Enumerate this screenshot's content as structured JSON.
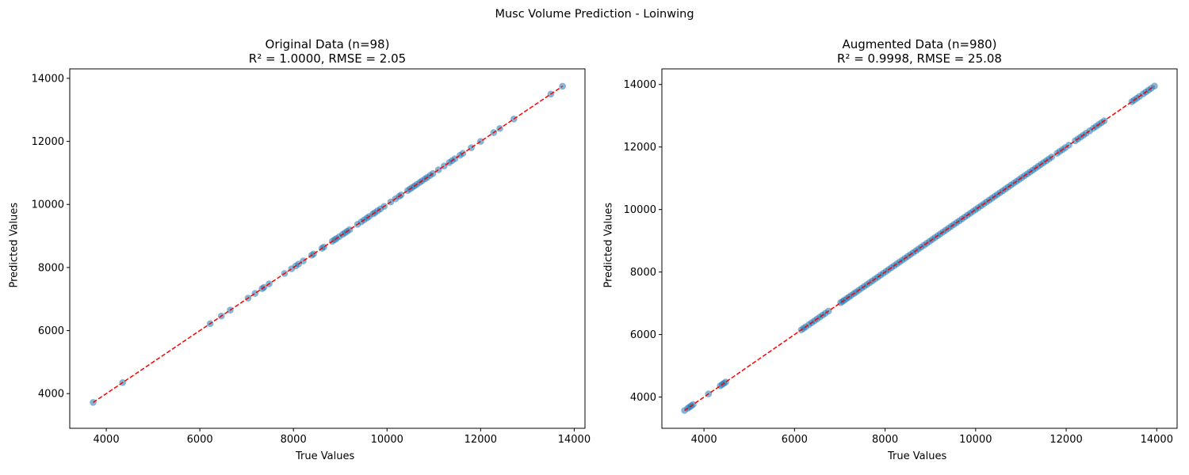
{
  "figure": {
    "suptitle": "Musc Volume Prediction - Loinwing"
  },
  "chart_data": [
    {
      "type": "scatter",
      "title_line1": "Original Data (n=98)",
      "title_line2": "R² = 1.0000, RMSE = 2.05",
      "xlabel": "True Values",
      "ylabel": "Predicted Values",
      "xlim": [
        3220,
        14230
      ],
      "ylim": [
        2900,
        14300
      ],
      "xticks": [
        4000,
        6000,
        8000,
        10000,
        12000,
        14000
      ],
      "yticks": [
        4000,
        6000,
        8000,
        10000,
        12000,
        14000
      ],
      "point_color": "#1f77b4",
      "line_color": "#ff0000",
      "reference_line": [
        3720,
        13750
      ],
      "x": [
        3720,
        4350,
        6220,
        6460,
        6650,
        7030,
        7180,
        7330,
        7370,
        7480,
        7810,
        7960,
        8050,
        8110,
        8210,
        8390,
        8430,
        8610,
        8650,
        8830,
        8880,
        8920,
        8980,
        9050,
        9100,
        9150,
        9200,
        9370,
        9450,
        9510,
        9570,
        9620,
        9700,
        9740,
        9800,
        9860,
        9940,
        10080,
        10180,
        10260,
        10300,
        10440,
        10490,
        10540,
        10590,
        10640,
        10700,
        10750,
        10810,
        10860,
        10920,
        10980,
        11100,
        11220,
        11330,
        11390,
        11450,
        11560,
        11620,
        11800,
        12000,
        12280,
        12410,
        12710,
        13500,
        13750
      ],
      "y": [
        3720,
        4350,
        6220,
        6460,
        6650,
        7030,
        7180,
        7330,
        7370,
        7480,
        7810,
        7960,
        8050,
        8110,
        8210,
        8390,
        8430,
        8610,
        8650,
        8830,
        8880,
        8920,
        8980,
        9050,
        9100,
        9150,
        9200,
        9370,
        9450,
        9510,
        9570,
        9620,
        9700,
        9740,
        9800,
        9860,
        9940,
        10080,
        10180,
        10260,
        10300,
        10440,
        10490,
        10540,
        10590,
        10640,
        10700,
        10750,
        10810,
        10860,
        10920,
        10980,
        11100,
        11220,
        11330,
        11390,
        11450,
        11560,
        11620,
        11800,
        12000,
        12280,
        12410,
        12710,
        13500,
        13750
      ]
    },
    {
      "type": "scatter",
      "title_line1": "Augmented Data (n=980)",
      "title_line2": "R² = 0.9998, RMSE = 25.08",
      "xlabel": "True Values",
      "ylabel": "Predicted Values",
      "xlim": [
        3070,
        14450
      ],
      "ylim": [
        3000,
        14500
      ],
      "xticks": [
        4000,
        6000,
        8000,
        10000,
        12000,
        14000
      ],
      "yticks": [
        4000,
        6000,
        8000,
        10000,
        12000,
        14000
      ],
      "point_color": "#1f77b4",
      "line_color": "#ff0000",
      "reference_line": [
        3570,
        13950
      ],
      "x": [
        3570,
        3640,
        3680,
        3720,
        3760,
        4100,
        4360,
        4400,
        4440,
        4480,
        6150,
        6200,
        6250,
        6320,
        6380,
        6440,
        6500,
        6560,
        6620,
        6680,
        6750,
        7020,
        7060,
        7100,
        7150,
        7200,
        7250,
        7310,
        7360,
        7420,
        7480,
        7540,
        7600,
        7660,
        7720,
        7780,
        7840,
        7900,
        7960,
        8020,
        8080,
        8140,
        8200,
        8260,
        8320,
        8380,
        8440,
        8500,
        8560,
        8620,
        8680,
        8740,
        8800,
        8860,
        8920,
        8980,
        9040,
        9100,
        9160,
        9220,
        9280,
        9340,
        9400,
        9460,
        9520,
        9580,
        9640,
        9700,
        9760,
        9820,
        9880,
        9940,
        10000,
        10060,
        10120,
        10180,
        10240,
        10300,
        10360,
        10420,
        10480,
        10540,
        10600,
        10660,
        10720,
        10780,
        10840,
        10900,
        10960,
        11020,
        11080,
        11140,
        11200,
        11260,
        11320,
        11380,
        11440,
        11500,
        11560,
        11620,
        11680,
        11800,
        11860,
        11920,
        11980,
        12060,
        12200,
        12260,
        12320,
        12380,
        12440,
        12520,
        12600,
        12660,
        12720,
        12780,
        12840,
        13450,
        13500,
        13560,
        13620,
        13700,
        13760,
        13820,
        13880,
        13950
      ],
      "y": [
        3570,
        3640,
        3680,
        3720,
        3760,
        4100,
        4360,
        4400,
        4440,
        4480,
        6150,
        6200,
        6250,
        6320,
        6380,
        6440,
        6500,
        6560,
        6620,
        6680,
        6750,
        7020,
        7060,
        7100,
        7150,
        7200,
        7250,
        7310,
        7360,
        7420,
        7480,
        7540,
        7600,
        7660,
        7720,
        7780,
        7840,
        7900,
        7960,
        8020,
        8080,
        8140,
        8200,
        8260,
        8320,
        8380,
        8440,
        8500,
        8560,
        8620,
        8680,
        8740,
        8800,
        8860,
        8920,
        8980,
        9040,
        9100,
        9160,
        9220,
        9280,
        9340,
        9400,
        9460,
        9520,
        9580,
        9640,
        9700,
        9760,
        9820,
        9880,
        9940,
        10000,
        10060,
        10120,
        10180,
        10240,
        10300,
        10360,
        10420,
        10480,
        10540,
        10600,
        10660,
        10720,
        10780,
        10840,
        10900,
        10960,
        11020,
        11080,
        11140,
        11200,
        11260,
        11320,
        11380,
        11440,
        11500,
        11560,
        11620,
        11680,
        11800,
        11860,
        11920,
        11980,
        12060,
        12200,
        12260,
        12320,
        12380,
        12440,
        12520,
        12600,
        12660,
        12720,
        12780,
        12840,
        13450,
        13500,
        13560,
        13620,
        13700,
        13760,
        13820,
        13880,
        13950
      ]
    }
  ]
}
